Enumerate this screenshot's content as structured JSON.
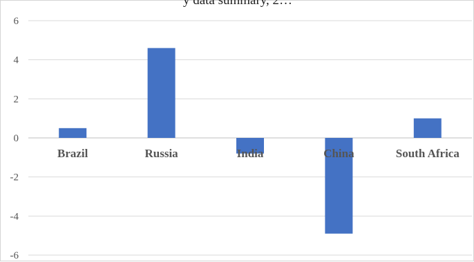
{
  "chart_data": {
    "type": "bar",
    "title": "y data summary, 2…",
    "xlabel": "",
    "ylabel": "",
    "categories": [
      "Brazil",
      "Russia",
      "India",
      "China",
      "South Africa"
    ],
    "series": [
      {
        "values": [
          0.5,
          4.6,
          -0.8,
          -4.9,
          1.0
        ]
      }
    ],
    "ylim": [
      -6,
      6
    ],
    "yticks": [
      "6",
      "4",
      "2",
      "0",
      "-2",
      "-4",
      "-6"
    ],
    "ytick_values": [
      6,
      4,
      2,
      0,
      -2,
      -4,
      -6
    ],
    "grid": true,
    "legend": "none",
    "colors": {
      "bar": "#4472c4",
      "grid": "#d9d9d9",
      "axis": "#bfbfbf"
    }
  }
}
